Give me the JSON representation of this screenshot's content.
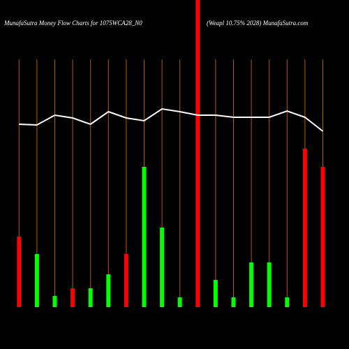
{
  "chart_data": {
    "type": "bar",
    "title": "MunafaSutra  Money Flow  Charts for 1075WCA28_N0",
    "subtitle": "(Weapl 10.75% 2028) MunafaSutra.com",
    "categories": [
      null,
      null,
      null,
      null,
      null,
      null,
      null,
      null,
      null,
      null,
      null,
      null,
      null,
      null,
      null,
      null,
      null,
      null
    ],
    "series": [
      {
        "values": [
          101,
          76,
          16,
          27,
          27,
          47,
          76,
          201,
          114,
          14,
          440,
          39,
          14,
          64,
          64,
          14,
          227,
          201
        ],
        "colors": [
          "#ff0000",
          "#00ff00",
          "#00ff00",
          "#ff0000",
          "#00ff00",
          "#00ff00",
          "#ff0000",
          "#00ff00",
          "#00ff00",
          "#00ff00",
          "#ff0000",
          "#00ff00",
          "#00ff00",
          "#00ff00",
          "#00ff00",
          "#00ff00",
          "#ff0000",
          "#ff0000"
        ]
      },
      {
        "type": "line",
        "color": "#ffffff",
        "values": [
          262,
          261,
          275,
          271,
          262,
          280,
          271,
          267,
          284,
          280,
          275,
          275,
          272,
          272,
          272,
          281,
          272,
          252
        ]
      }
    ],
    "ylim": [
      0,
      440
    ],
    "guide_color": "#b35a00"
  }
}
